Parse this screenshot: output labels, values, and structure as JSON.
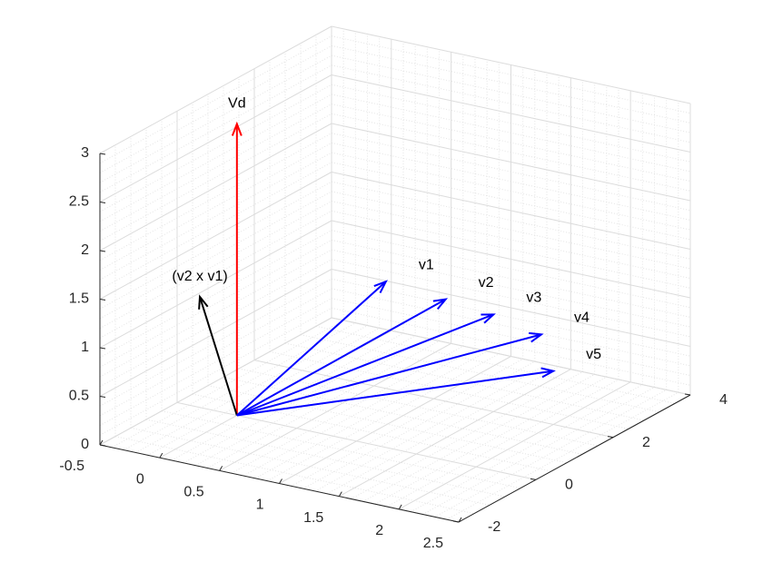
{
  "chart_data": {
    "type": "quiver3",
    "xlim": [
      -0.5,
      2.5
    ],
    "xticks": [
      -0.5,
      0,
      0.5,
      1,
      1.5,
      2,
      2.5
    ],
    "ylim": [
      -2,
      4
    ],
    "yticks": [
      -2,
      0,
      2,
      4
    ],
    "zlim": [
      0,
      3
    ],
    "zticks": [
      0,
      0.5,
      1,
      1.5,
      2,
      2.5,
      3
    ],
    "grid": true,
    "minor_grid": true,
    "origin": [
      0,
      0,
      0
    ],
    "vectors": [
      {
        "label": "Vd",
        "color": "#ff0000",
        "components": [
          0,
          0,
          3
        ]
      },
      {
        "label": "(v2 x v1)",
        "color": "#000000",
        "components": [
          0,
          -0.96,
          1.43
        ]
      },
      {
        "label": "v1",
        "color": "#0000ff",
        "components": [
          0.6,
          2,
          1.1
        ]
      },
      {
        "label": "v2",
        "color": "#0000ff",
        "components": [
          1.1,
          2,
          1.05
        ]
      },
      {
        "label": "v3",
        "color": "#0000ff",
        "components": [
          1.5,
          2,
          1
        ]
      },
      {
        "label": "v4",
        "color": "#0000ff",
        "components": [
          1.9,
          2,
          0.9
        ]
      },
      {
        "label": "v5",
        "color": "#0000ff",
        "components": [
          2,
          2,
          0.55
        ]
      }
    ]
  }
}
